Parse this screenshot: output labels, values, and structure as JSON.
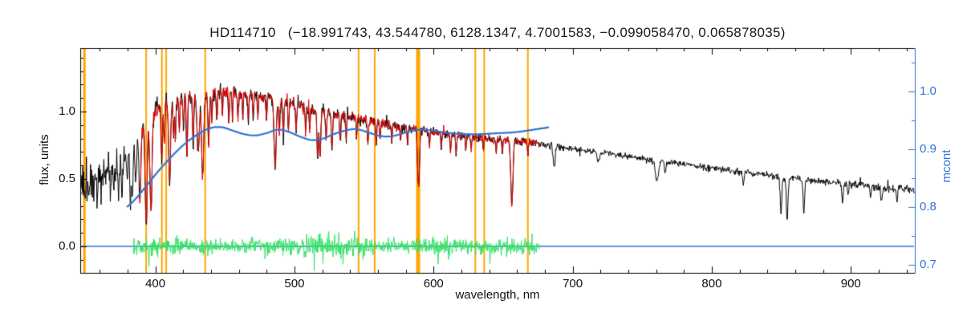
{
  "page": {
    "background": "#ffffff"
  },
  "chart_data": {
    "type": "line",
    "title": "HD114710   (−18.991743, 43.544780, 6128.1347, 4.7001583, −0.099058470, 0.065878035)",
    "object_name": "HD114710",
    "fit_parameters": [
      "−18.991743",
      "43.544780",
      "6128.1347",
      "4.7001583",
      "−0.099058470",
      "0.065878035"
    ],
    "xlabel": "wavelength, nm",
    "ylabel_left": "flux, units",
    "ylabel_right": "mcont",
    "grid": false,
    "legend": false,
    "x_range": [
      346,
      946
    ],
    "y_left_range": [
      -0.196,
      1.47
    ],
    "y_right_range": [
      0.6861,
      1.075
    ],
    "x_ticks": [
      "400",
      "500",
      "600",
      "700",
      "800",
      "900"
    ],
    "x_minor_step": 20,
    "y_left_ticks": [
      "0.0",
      "0.5",
      "1.0"
    ],
    "y_left_minor_step": 0.1,
    "y_right_ticks": [
      "0.7",
      "0.8",
      "0.9",
      "1.0"
    ],
    "y_right_minor_step": 0.05,
    "colors": {
      "axis": "#000000",
      "title_text": "#1a1a1a",
      "orange_marker": "#ffa500",
      "observed": "#000000",
      "model": "#e00000",
      "continuum_mcont": "#2f74d4",
      "residual": "#35e065",
      "zero_line": "#2f74d4"
    },
    "orange_marker_wavelengths": [
      349.0,
      393.4,
      404.7,
      407.8,
      435.8,
      546.1,
      557.7,
      588.9,
      630.0,
      636.4,
      667.8
    ],
    "orange_marker_widths": [
      3,
      2,
      2,
      2,
      2,
      2,
      2,
      5,
      2,
      2,
      2
    ],
    "series": {
      "observed": {
        "name": "observed spectrum",
        "x_range": [
          346.5,
          945.5
        ],
        "continuum": [
          [
            346,
            0.48
          ],
          [
            352,
            0.5
          ],
          [
            358,
            0.53
          ],
          [
            364,
            0.56
          ],
          [
            370,
            0.59
          ],
          [
            376,
            0.63
          ],
          [
            382,
            0.7
          ],
          [
            388,
            0.82
          ],
          [
            394,
            0.95
          ],
          [
            400,
            1.02
          ],
          [
            406,
            1.05
          ],
          [
            412,
            1.08
          ],
          [
            418,
            1.1
          ],
          [
            424,
            1.11
          ],
          [
            430,
            1.12
          ],
          [
            436,
            1.13
          ],
          [
            442,
            1.14
          ],
          [
            448,
            1.15
          ],
          [
            454,
            1.15
          ],
          [
            460,
            1.14
          ],
          [
            466,
            1.13
          ],
          [
            472,
            1.12
          ],
          [
            478,
            1.11
          ],
          [
            484,
            1.1
          ],
          [
            490,
            1.08
          ],
          [
            496,
            1.07
          ],
          [
            502,
            1.05
          ],
          [
            510,
            1.02
          ],
          [
            518,
            1.0
          ],
          [
            526,
            0.99
          ],
          [
            534,
            0.97
          ],
          [
            542,
            0.96
          ],
          [
            550,
            0.94
          ],
          [
            558,
            0.92
          ],
          [
            566,
            0.91
          ],
          [
            574,
            0.89
          ],
          [
            582,
            0.88
          ],
          [
            590,
            0.87
          ],
          [
            598,
            0.85
          ],
          [
            606,
            0.84
          ],
          [
            614,
            0.83
          ],
          [
            622,
            0.82
          ],
          [
            630,
            0.81
          ],
          [
            638,
            0.8
          ],
          [
            646,
            0.79
          ],
          [
            654,
            0.79
          ],
          [
            662,
            0.78
          ],
          [
            670,
            0.77
          ],
          [
            678,
            0.76
          ],
          [
            690,
            0.74
          ],
          [
            702,
            0.72
          ],
          [
            714,
            0.71
          ],
          [
            726,
            0.69
          ],
          [
            738,
            0.67
          ],
          [
            750,
            0.65
          ],
          [
            762,
            0.63
          ],
          [
            774,
            0.62
          ],
          [
            786,
            0.6
          ],
          [
            798,
            0.58
          ],
          [
            810,
            0.57
          ],
          [
            822,
            0.55
          ],
          [
            834,
            0.54
          ],
          [
            846,
            0.52
          ],
          [
            858,
            0.51
          ],
          [
            870,
            0.49
          ],
          [
            882,
            0.48
          ],
          [
            894,
            0.47
          ],
          [
            906,
            0.46
          ],
          [
            918,
            0.44
          ],
          [
            930,
            0.43
          ],
          [
            946,
            0.42
          ]
        ],
        "noise_amplitude": [
          [
            346,
            0.13
          ],
          [
            355,
            0.12
          ],
          [
            365,
            0.1
          ],
          [
            375,
            0.09
          ],
          [
            385,
            0.07
          ],
          [
            395,
            0.055
          ],
          [
            405,
            0.05
          ],
          [
            420,
            0.045
          ],
          [
            440,
            0.04
          ],
          [
            460,
            0.038
          ],
          [
            480,
            0.036
          ],
          [
            500,
            0.034
          ],
          [
            530,
            0.03
          ],
          [
            560,
            0.028
          ],
          [
            600,
            0.025
          ],
          [
            640,
            0.022
          ],
          [
            680,
            0.02
          ],
          [
            720,
            0.017
          ],
          [
            760,
            0.016
          ],
          [
            800,
            0.017
          ],
          [
            840,
            0.018
          ],
          [
            880,
            0.02
          ],
          [
            920,
            0.022
          ],
          [
            946,
            0.024
          ]
        ],
        "absorption_lines": [
          [
            352.5,
            0.28,
            0.9
          ],
          [
            356.0,
            0.22,
            0.8
          ],
          [
            358.1,
            0.3,
            0.9
          ],
          [
            361.1,
            0.25,
            0.8
          ],
          [
            364.0,
            0.22,
            0.8
          ],
          [
            367.6,
            0.25,
            0.8
          ],
          [
            370.1,
            0.25,
            0.8
          ],
          [
            373.5,
            0.3,
            1.0
          ],
          [
            376.0,
            0.28,
            0.9
          ],
          [
            379.8,
            0.3,
            0.9
          ],
          [
            382.0,
            0.45,
            1.1
          ],
          [
            383.5,
            0.5,
            1.1
          ],
          [
            385.9,
            0.45,
            1.0
          ],
          [
            388.9,
            0.6,
            1.4
          ],
          [
            393.4,
            0.8,
            1.6
          ],
          [
            396.8,
            0.75,
            1.6
          ],
          [
            404.6,
            0.4,
            1.0
          ],
          [
            406.4,
            0.3,
            0.8
          ],
          [
            410.2,
            0.55,
            1.4
          ],
          [
            413.1,
            0.25,
            0.8
          ],
          [
            414.4,
            0.28,
            0.8
          ],
          [
            417.2,
            0.22,
            0.8
          ],
          [
            420.2,
            0.22,
            0.8
          ],
          [
            422.7,
            0.4,
            1.0
          ],
          [
            427.2,
            0.3,
            0.9
          ],
          [
            430.8,
            0.38,
            1.8
          ],
          [
            434.0,
            0.55,
            1.5
          ],
          [
            438.3,
            0.32,
            1.1
          ],
          [
            440.5,
            0.22,
            0.8
          ],
          [
            444.2,
            0.2,
            0.8
          ],
          [
            448.2,
            0.16,
            0.7
          ],
          [
            452.9,
            0.18,
            0.8
          ],
          [
            455.4,
            0.16,
            0.7
          ],
          [
            459.4,
            0.16,
            0.7
          ],
          [
            462.9,
            0.15,
            0.7
          ],
          [
            466.8,
            0.16,
            0.8
          ],
          [
            470.3,
            0.14,
            0.7
          ],
          [
            473.7,
            0.14,
            0.7
          ],
          [
            480.0,
            0.13,
            0.7
          ],
          [
            486.1,
            0.48,
            1.6
          ],
          [
            489.1,
            0.22,
            0.9
          ],
          [
            492.0,
            0.22,
            0.9
          ],
          [
            495.7,
            0.17,
            0.8
          ],
          [
            501.2,
            0.18,
            0.9
          ],
          [
            508.0,
            0.17,
            0.8
          ],
          [
            511.0,
            0.15,
            0.7
          ],
          [
            516.7,
            0.34,
            1.1
          ],
          [
            518.4,
            0.34,
            1.1
          ],
          [
            522.7,
            0.2,
            0.9
          ],
          [
            526.9,
            0.28,
            1.0
          ],
          [
            532.8,
            0.2,
            0.9
          ],
          [
            537.1,
            0.17,
            0.8
          ],
          [
            544.7,
            0.15,
            0.7
          ],
          [
            552.8,
            0.18,
            0.9
          ],
          [
            558.8,
            0.15,
            0.8
          ],
          [
            561.6,
            0.13,
            0.7
          ],
          [
            570.0,
            0.13,
            0.7
          ],
          [
            576.3,
            0.13,
            0.7
          ],
          [
            581.2,
            0.13,
            0.7
          ],
          [
            588.9,
            0.38,
            1.2
          ],
          [
            589.6,
            0.32,
            1.0
          ],
          [
            597.0,
            0.13,
            0.7
          ],
          [
            605.6,
            0.12,
            0.7
          ],
          [
            612.2,
            0.15,
            0.8
          ],
          [
            616.2,
            0.17,
            0.8
          ],
          [
            623.1,
            0.13,
            0.7
          ],
          [
            627.0,
            0.12,
            0.7
          ],
          [
            635.8,
            0.12,
            0.7
          ],
          [
            645.0,
            0.11,
            0.7
          ],
          [
            649.5,
            0.13,
            0.7
          ],
          [
            656.3,
            0.62,
            1.6
          ],
          [
            667.8,
            0.12,
            0.7
          ],
          [
            686.7,
            0.22,
            1.4
          ],
          [
            718.5,
            0.1,
            2.0
          ],
          [
            760.5,
            0.24,
            2.2
          ],
          [
            766.5,
            0.14,
            1.0
          ],
          [
            822.7,
            0.16,
            1.2
          ],
          [
            849.8,
            0.52,
            1.2
          ],
          [
            854.2,
            0.58,
            1.3
          ],
          [
            866.2,
            0.48,
            1.2
          ],
          [
            894.0,
            0.3,
            1.2
          ],
          [
            898.0,
            0.2,
            0.9
          ],
          [
            914.0,
            0.18,
            1.0
          ],
          [
            922.0,
            0.22,
            1.1
          ],
          [
            933.0,
            0.18,
            1.0
          ]
        ]
      },
      "model": {
        "name": "model spectrum",
        "x_range": [
          388.5,
          676
        ],
        "noise_scale": 0.9
      },
      "mcont": {
        "name": "normalized continuum (right axis)",
        "axis": "right",
        "points": [
          [
            379.5,
            0.8
          ],
          [
            385,
            0.812
          ],
          [
            392,
            0.832
          ],
          [
            400,
            0.856
          ],
          [
            408,
            0.878
          ],
          [
            416,
            0.898
          ],
          [
            424,
            0.915
          ],
          [
            432,
            0.928
          ],
          [
            440,
            0.937
          ],
          [
            448,
            0.938
          ],
          [
            456,
            0.932
          ],
          [
            464,
            0.926
          ],
          [
            472,
            0.924
          ],
          [
            480,
            0.928
          ],
          [
            488,
            0.934
          ],
          [
            496,
            0.93
          ],
          [
            504,
            0.922
          ],
          [
            512,
            0.916
          ],
          [
            520,
            0.918
          ],
          [
            528,
            0.926
          ],
          [
            536,
            0.932
          ],
          [
            544,
            0.935
          ],
          [
            552,
            0.93
          ],
          [
            560,
            0.924
          ],
          [
            568,
            0.922
          ],
          [
            576,
            0.926
          ],
          [
            584,
            0.932
          ],
          [
            592,
            0.934
          ],
          [
            600,
            0.932
          ],
          [
            608,
            0.929
          ],
          [
            616,
            0.927
          ],
          [
            624,
            0.926
          ],
          [
            632,
            0.926
          ],
          [
            640,
            0.927
          ],
          [
            648,
            0.928
          ],
          [
            656,
            0.929
          ],
          [
            664,
            0.931
          ],
          [
            672,
            0.934
          ],
          [
            683,
            0.938
          ]
        ]
      },
      "residual": {
        "name": "fit residual",
        "x_range": [
          384,
          676
        ],
        "amplitude": [
          [
            384,
            0.04
          ],
          [
            392,
            0.05
          ],
          [
            400,
            0.048
          ],
          [
            412,
            0.044
          ],
          [
            424,
            0.044
          ],
          [
            436,
            0.046
          ],
          [
            448,
            0.042
          ],
          [
            460,
            0.04
          ],
          [
            472,
            0.038
          ],
          [
            484,
            0.042
          ],
          [
            496,
            0.046
          ],
          [
            508,
            0.056
          ],
          [
            516,
            0.068
          ],
          [
            524,
            0.072
          ],
          [
            532,
            0.06
          ],
          [
            540,
            0.05
          ],
          [
            552,
            0.04
          ],
          [
            564,
            0.034
          ],
          [
            576,
            0.036
          ],
          [
            588,
            0.042
          ],
          [
            600,
            0.048
          ],
          [
            612,
            0.046
          ],
          [
            624,
            0.043
          ],
          [
            636,
            0.041
          ],
          [
            648,
            0.044
          ],
          [
            656,
            0.052
          ],
          [
            664,
            0.044
          ],
          [
            676,
            0.034
          ]
        ]
      },
      "zero_line": {
        "y": 0.0,
        "x_range": [
          346.5,
          945.5
        ]
      }
    }
  }
}
